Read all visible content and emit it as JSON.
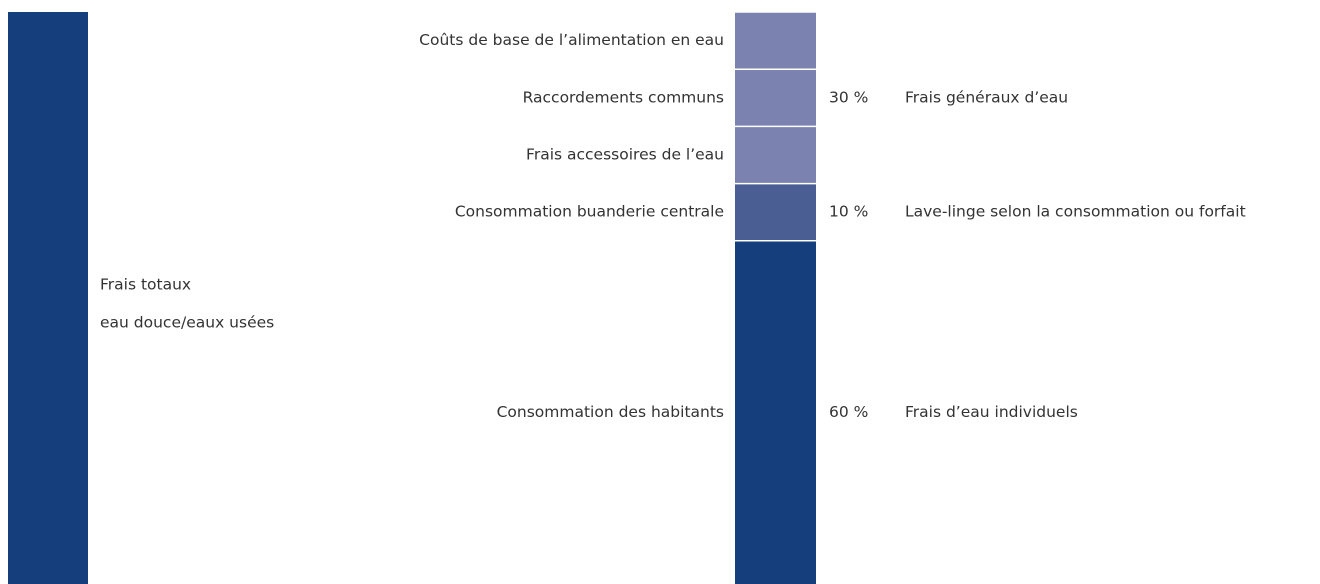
{
  "total": {
    "lines": [
      "Frais totaux",
      "eau douce/eaux usées"
    ],
    "color": "#153f7c"
  },
  "groups": [
    {
      "value": 30,
      "value_label": "30 %",
      "label": "Frais généraux d’eau",
      "color": "#7b82b0",
      "items": [
        "Coûts de base de l’alimentation en eau",
        "Raccordements communs",
        "Frais accessoires de l’eau"
      ]
    },
    {
      "value": 10,
      "value_label": "10 %",
      "label": "Lave-linge selon la consommation ou forfait",
      "color": "#4b5e94",
      "items": [
        "Consommation buanderie centrale"
      ]
    },
    {
      "value": 60,
      "value_label": "60 %",
      "label": "Frais d’eau individuels",
      "color": "#153f7c",
      "items": [
        "Consommation des habitants"
      ]
    }
  ]
}
